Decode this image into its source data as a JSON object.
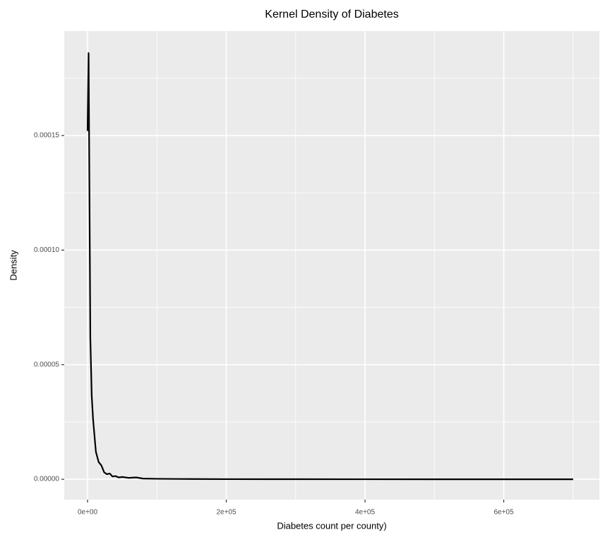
{
  "chart_data": {
    "type": "line",
    "title": "Kernel Density of Diabetes",
    "x_label": "Diabetes count per county)",
    "y_label": "Density",
    "x": [
      0,
      1500,
      4000,
      6000,
      8000,
      12000,
      16000,
      20000,
      24000,
      28000,
      32000,
      36000,
      40000,
      45000,
      50000,
      60000,
      70000,
      80000,
      100000,
      150000,
      200000,
      300000,
      400000,
      500000,
      600000,
      700000
    ],
    "series": [
      {
        "name": "Density",
        "color": "#000000",
        "values": [
          0.000152,
          0.000186,
          6.2e-05,
          3.65e-05,
          2.6e-05,
          1.2e-05,
          7.5e-06,
          6e-06,
          3e-06,
          2.2e-06,
          2.5e-06,
          1.2e-06,
          1.4e-06,
          8e-07,
          1e-06,
          6e-07,
          8e-07,
          3e-07,
          2e-07,
          1e-07,
          5e-08,
          2e-08,
          1e-08,
          0,
          0,
          0
        ]
      }
    ],
    "xlim": [
      -33600,
      737900
    ],
    "xticks": [
      {
        "value": 0,
        "label": "0e+00"
      },
      {
        "value": 200000,
        "label": "2e+05"
      },
      {
        "value": 400000,
        "label": "4e+05"
      },
      {
        "value": 600000,
        "label": "6e+05"
      }
    ],
    "xminor": [
      100000,
      300000,
      500000,
      700000
    ],
    "ylim": [
      -8.9e-06,
      0.0001956
    ],
    "yticks": [
      {
        "value": 0,
        "label": "0.00000"
      },
      {
        "value": 5e-05,
        "label": "0.00005"
      },
      {
        "value": 0.0001,
        "label": "0.00010"
      },
      {
        "value": 0.00015,
        "label": "0.00015"
      }
    ],
    "yminor": [
      2.5e-05,
      7.5e-05,
      0.000125,
      0.000175
    ],
    "grid": true
  }
}
